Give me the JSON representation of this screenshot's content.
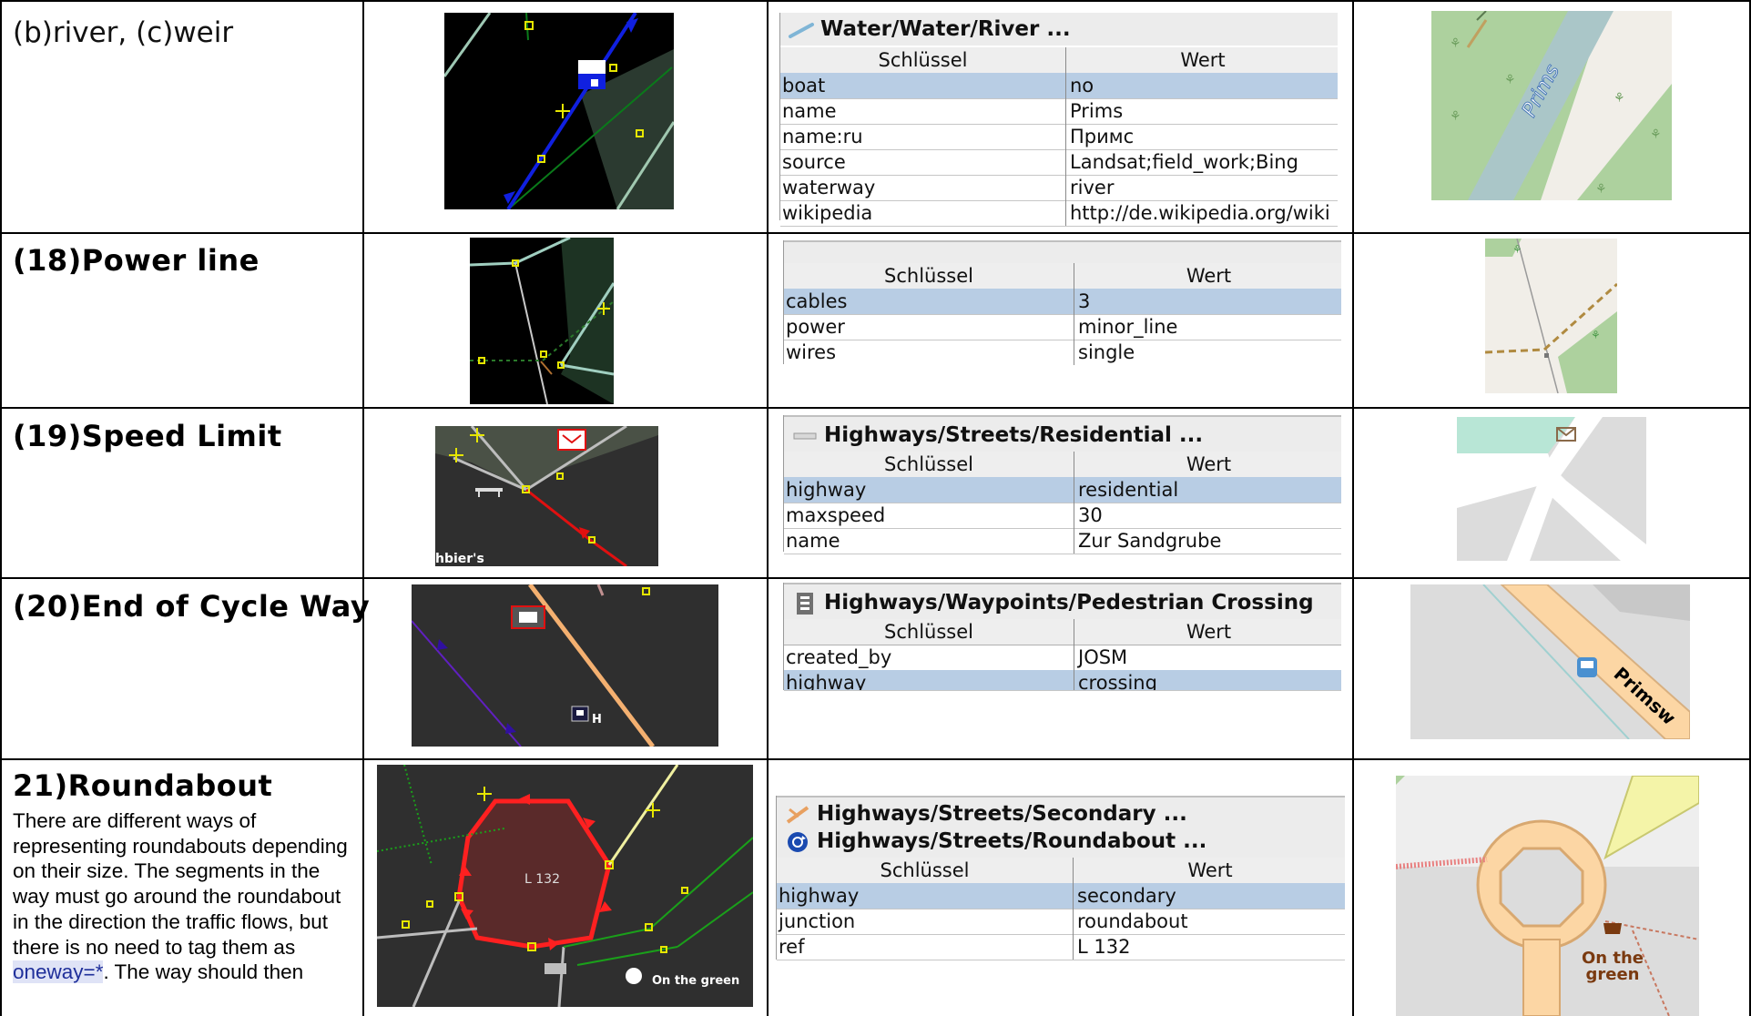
{
  "rows": [
    {
      "label": "(b)river, (c)weir",
      "panel": {
        "titles": [
          "Water/Water/River ..."
        ],
        "headers": {
          "key": "Schlüssel",
          "value": "Wert"
        },
        "tags": [
          {
            "key": "boat",
            "value": "no",
            "selected": true
          },
          {
            "key": "name",
            "value": "Prims",
            "selected": false
          },
          {
            "key": "name:ru",
            "value": "Примс",
            "selected": false
          },
          {
            "key": "source",
            "value": "Landsat;field_work;Bing",
            "selected": false
          },
          {
            "key": "waterway",
            "value": "river",
            "selected": false
          },
          {
            "key": "wikipedia",
            "value": "http://de.wikipedia.org/wiki",
            "selected": false
          }
        ]
      },
      "map_label": "Prims"
    },
    {
      "label": "(18)Power line",
      "panel": {
        "titles": [],
        "headers": {
          "key": "Schlüssel",
          "value": "Wert"
        },
        "tags": [
          {
            "key": "cables",
            "value": "3",
            "selected": true
          },
          {
            "key": "power",
            "value": "minor_line",
            "selected": false
          },
          {
            "key": "wires",
            "value": "single",
            "selected": false
          }
        ]
      }
    },
    {
      "label": "(19)Speed Limit",
      "panel": {
        "titles": [
          "Highways/Streets/Residential ..."
        ],
        "headers": {
          "key": "Schlüssel",
          "value": "Wert"
        },
        "tags": [
          {
            "key": "highway",
            "value": "residential",
            "selected": true
          },
          {
            "key": "maxspeed",
            "value": "30",
            "selected": false
          },
          {
            "key": "name",
            "value": "Zur Sandgrube",
            "selected": false
          }
        ]
      },
      "editor_label": "hbier's"
    },
    {
      "label": "(20)End of Cycle Way",
      "panel": {
        "titles": [
          "Highways/Waypoints/Pedestrian Crossing ..."
        ],
        "headers": {
          "key": "Schlüssel",
          "value": "Wert"
        },
        "tags": [
          {
            "key": "created_by",
            "value": "JOSM",
            "selected": false
          },
          {
            "key": "highway",
            "value": "crossing",
            "selected": true
          }
        ]
      },
      "editor_label": "H",
      "map_label": "Primsw"
    },
    {
      "label": "21)Roundabout",
      "description_before": "There are different ways of representing roundabouts depending on their size. The segments in the way must go around the roundabout in the direction the traffic flows, but there is no need to tag them as ",
      "description_link": "oneway=*",
      "description_after": ". The way should then",
      "panel": {
        "titles": [
          "Highways/Streets/Secondary ...",
          "Highways/Streets/Roundabout ..."
        ],
        "headers": {
          "key": "Schlüssel",
          "value": "Wert"
        },
        "tags": [
          {
            "key": "highway",
            "value": "secondary",
            "selected": true
          },
          {
            "key": "junction",
            "value": "roundabout",
            "selected": false
          },
          {
            "key": "ref",
            "value": "L 132",
            "selected": false
          }
        ]
      },
      "editor_ref": "L 132",
      "editor_cafe": "On the green",
      "map_label_1": "On the",
      "map_label_2": "green"
    }
  ],
  "colors": {
    "selected_row": "#b8cde4",
    "editor_background": "#000000",
    "osm_landuse_green": "#add19e",
    "osm_road_orange": "#fcd6a4"
  }
}
